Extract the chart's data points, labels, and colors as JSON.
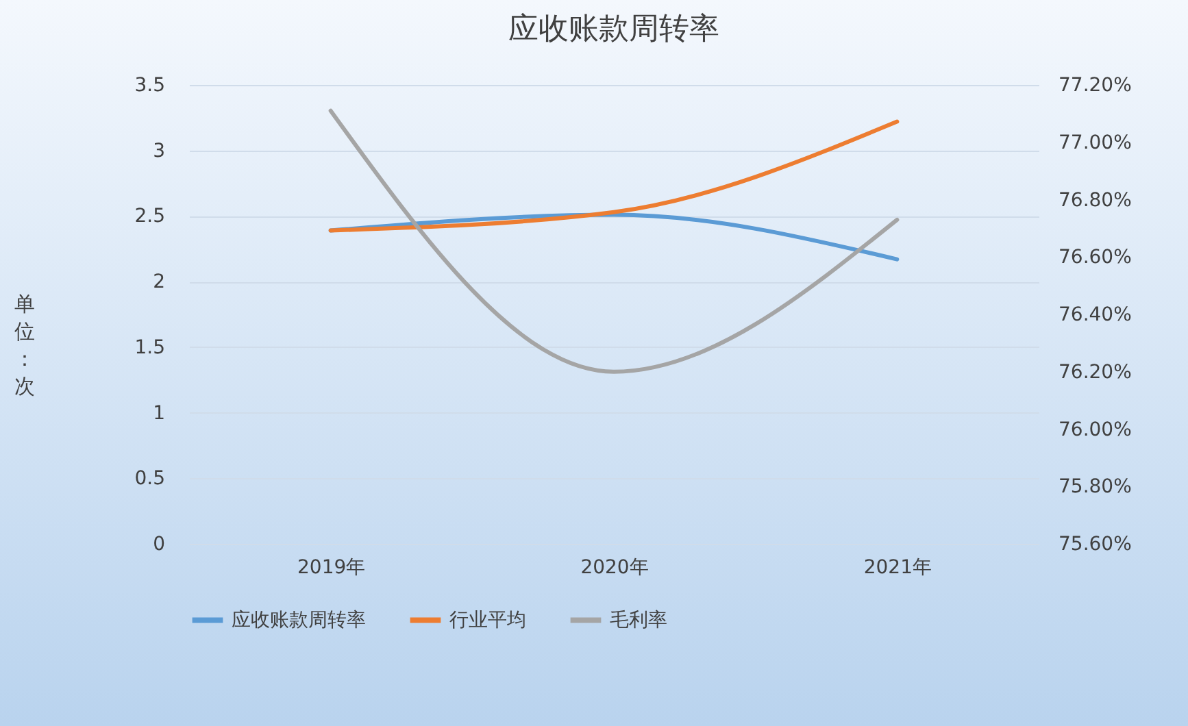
{
  "chart_data": {
    "type": "line",
    "title": "应收账款周转率",
    "ylabel": "单位：次",
    "categories": [
      "2019年",
      "2020年",
      "2021年"
    ],
    "series": [
      {
        "name": "应收账款周转率",
        "color": "#5b9bd5",
        "values": [
          2.39,
          2.51,
          2.17
        ]
      },
      {
        "name": "行业平均",
        "color": "#ed7d31",
        "values": [
          2.39,
          2.53,
          3.22
        ]
      },
      {
        "name": "毛利率",
        "color": "#a5a5a5",
        "values": [
          77.11,
          76.2,
          76.73
        ],
        "axis": "y2"
      }
    ],
    "ylim": [
      0,
      3.5
    ],
    "yticks": [
      0,
      0.5,
      1,
      1.5,
      2,
      2.5,
      3,
      3.5
    ],
    "y2lim": [
      75.6,
      77.2
    ],
    "y2ticks": [
      {
        "value": 75.6,
        "label": "75.60%"
      },
      {
        "value": 75.8,
        "label": "75.80%"
      },
      {
        "value": 76.0,
        "label": "76.00%"
      },
      {
        "value": 76.2,
        "label": "76.20%"
      },
      {
        "value": 76.4,
        "label": "76.40%"
      },
      {
        "value": 76.6,
        "label": "76.60%"
      },
      {
        "value": 76.8,
        "label": "76.80%"
      },
      {
        "value": 77.0,
        "label": "77.00%"
      },
      {
        "value": 77.2,
        "label": "77.20%"
      }
    ],
    "grid": "y",
    "legend": "bottom",
    "marker": "none",
    "line_style": "solid"
  }
}
